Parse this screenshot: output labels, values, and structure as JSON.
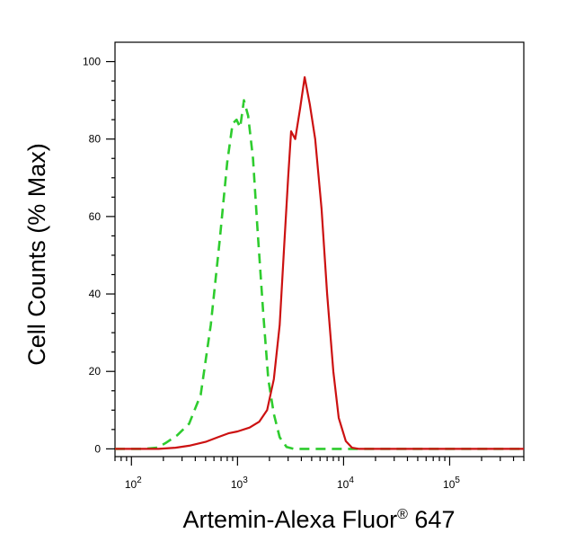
{
  "chart_data": {
    "type": "line",
    "xlabel": "Artemin-Alexa Fluor",
    "xlabel_superscript": "®",
    "xlabel_suffix": " 647",
    "ylabel": "Cell Counts (% Max)",
    "x_scale": "log",
    "xlim": [
      70,
      500000
    ],
    "ylim": [
      -2,
      105
    ],
    "y_ticks": [
      0,
      20,
      40,
      60,
      80,
      100
    ],
    "x_ticks": [
      {
        "value": 100,
        "base": "10",
        "exp": "2"
      },
      {
        "value": 1000,
        "base": "10",
        "exp": "3"
      },
      {
        "value": 10000,
        "base": "10",
        "exp": "4"
      },
      {
        "value": 100000,
        "base": "10",
        "exp": "5"
      }
    ],
    "grid": false,
    "legend": "none",
    "series": [
      {
        "style": "dashed",
        "color": "#2ecc2e",
        "points": [
          [
            70,
            0
          ],
          [
            130,
            0
          ],
          [
            175,
            0.3
          ],
          [
            210,
            1.5
          ],
          [
            270,
            3.5
          ],
          [
            350,
            6.5
          ],
          [
            450,
            14
          ],
          [
            560,
            32
          ],
          [
            680,
            54
          ],
          [
            800,
            74
          ],
          [
            900,
            84
          ],
          [
            980,
            85
          ],
          [
            1060,
            83
          ],
          [
            1150,
            90
          ],
          [
            1260,
            86
          ],
          [
            1400,
            75
          ],
          [
            1550,
            56
          ],
          [
            1750,
            35
          ],
          [
            1950,
            18
          ],
          [
            2200,
            9
          ],
          [
            2500,
            3
          ],
          [
            2900,
            0.5
          ],
          [
            3400,
            0
          ],
          [
            500000,
            0
          ]
        ]
      },
      {
        "style": "solid",
        "color": "#cc1111",
        "points": [
          [
            70,
            0
          ],
          [
            180,
            0
          ],
          [
            260,
            0.3
          ],
          [
            350,
            0.8
          ],
          [
            500,
            1.8
          ],
          [
            650,
            3
          ],
          [
            820,
            4
          ],
          [
            1000,
            4.5
          ],
          [
            1300,
            5.5
          ],
          [
            1600,
            7
          ],
          [
            1900,
            10
          ],
          [
            2200,
            18
          ],
          [
            2500,
            32
          ],
          [
            2750,
            52
          ],
          [
            3000,
            70
          ],
          [
            3200,
            82
          ],
          [
            3500,
            80
          ],
          [
            3900,
            88
          ],
          [
            4300,
            96
          ],
          [
            4800,
            89
          ],
          [
            5400,
            80
          ],
          [
            6200,
            62
          ],
          [
            7000,
            40
          ],
          [
            8000,
            20
          ],
          [
            9000,
            8
          ],
          [
            10500,
            2
          ],
          [
            12000,
            0.3
          ],
          [
            14000,
            0
          ],
          [
            500000,
            0
          ]
        ]
      }
    ]
  }
}
